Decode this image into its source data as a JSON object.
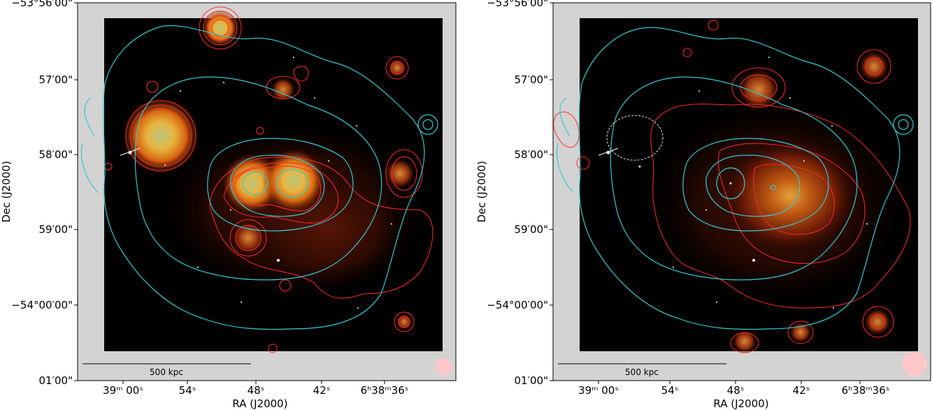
{
  "colors": {
    "frame_gray": "#d3d3d3",
    "sky_black": "#000000",
    "radio_contour": "#ff2a2a",
    "xray_contour": "#35c9cf",
    "emission_core": "#b8c87e",
    "emission_mid": "#e08a1a",
    "emission_outer": "#7a1a06",
    "beam_fill": "#ffc7c9"
  },
  "panels": [
    {
      "id": "left",
      "y_tick_labels": [
        "−53°56′00\"",
        "57′00\"",
        "58′00\"",
        "59′00\"",
        "−54°00′00\"",
        "01′00\""
      ],
      "x_tick_labels": [
        "39ᵐ 00ˢ",
        "54ˢ",
        "48ˢ",
        "42ˢ",
        "6ʰ38ᵐ36ˢ"
      ],
      "x_label": "RA (J2000)",
      "y_label": "Dec (J2000)",
      "scale_bar_label": "500 kpc"
    },
    {
      "id": "right",
      "y_tick_labels": [
        "−53°56′00\"",
        "57′00\"",
        "58′00\"",
        "59′00\"",
        "−54°00′00\"",
        "01′00\""
      ],
      "x_tick_labels": [
        "39ᵐ 00ˢ",
        "54ˢ",
        "48ˢ",
        "42ˢ",
        "6ʰ38ᵐ36ˢ"
      ],
      "x_label": "RA (J2000)",
      "y_label": "Dec (J2000)",
      "scale_bar_label": "500 kpc"
    }
  ]
}
